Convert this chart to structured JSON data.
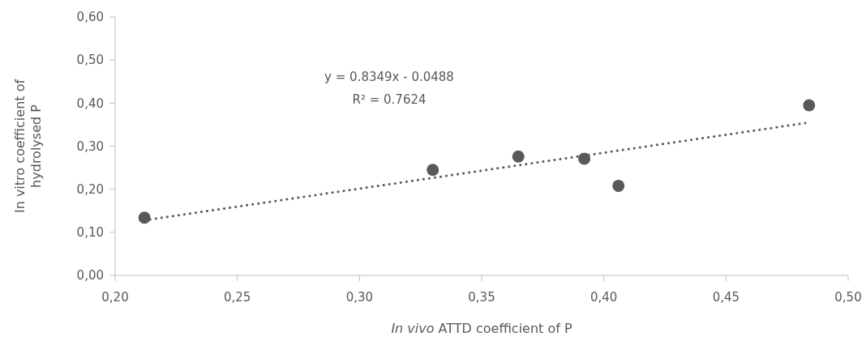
{
  "chart_data": {
    "type": "scatter",
    "xlabel": "In vivo ATTD coefficient of P",
    "ylabel": "In vitro coefficient of hydrolysed P",
    "xlim": [
      0.2,
      0.5
    ],
    "xticks": [
      {
        "value": 0.2,
        "label": "0,20"
      },
      {
        "value": 0.25,
        "label": "0,25"
      },
      {
        "value": 0.3,
        "label": "0,30"
      },
      {
        "value": 0.35,
        "label": "0,35"
      },
      {
        "value": 0.4,
        "label": "0,40"
      },
      {
        "value": 0.45,
        "label": "0,45"
      },
      {
        "value": 0.5,
        "label": "0,50"
      }
    ],
    "ylim": [
      0,
      0.6
    ],
    "yticks": [
      {
        "value": 0,
        "label": "0,00"
      },
      {
        "value": 0.1,
        "label": "0,10"
      },
      {
        "value": 0.2,
        "label": "0,20"
      },
      {
        "value": 0.3,
        "label": "0,30"
      },
      {
        "value": 0.4,
        "label": "0,40"
      },
      {
        "value": 0.5,
        "label": "0,50"
      },
      {
        "value": 0.6,
        "label": "0,60"
      }
    ],
    "grid": false,
    "series": [
      {
        "marker": "circle",
        "color": "#595959",
        "x": [
          0.212,
          0.33,
          0.365,
          0.392,
          0.406,
          0.484
        ],
        "values": [
          0.134,
          0.245,
          0.276,
          0.271,
          0.208,
          0.395
        ]
      },
      {
        "type": "line",
        "marker": "none",
        "color": "#595959",
        "line_style": "dotted",
        "x": [
          0.212,
          0.484
        ],
        "values": [
          0.128,
          0.355
        ]
      }
    ],
    "annotations": [
      "y = 0.8349x - 0.0488",
      "R² = 0.7624"
    ]
  }
}
